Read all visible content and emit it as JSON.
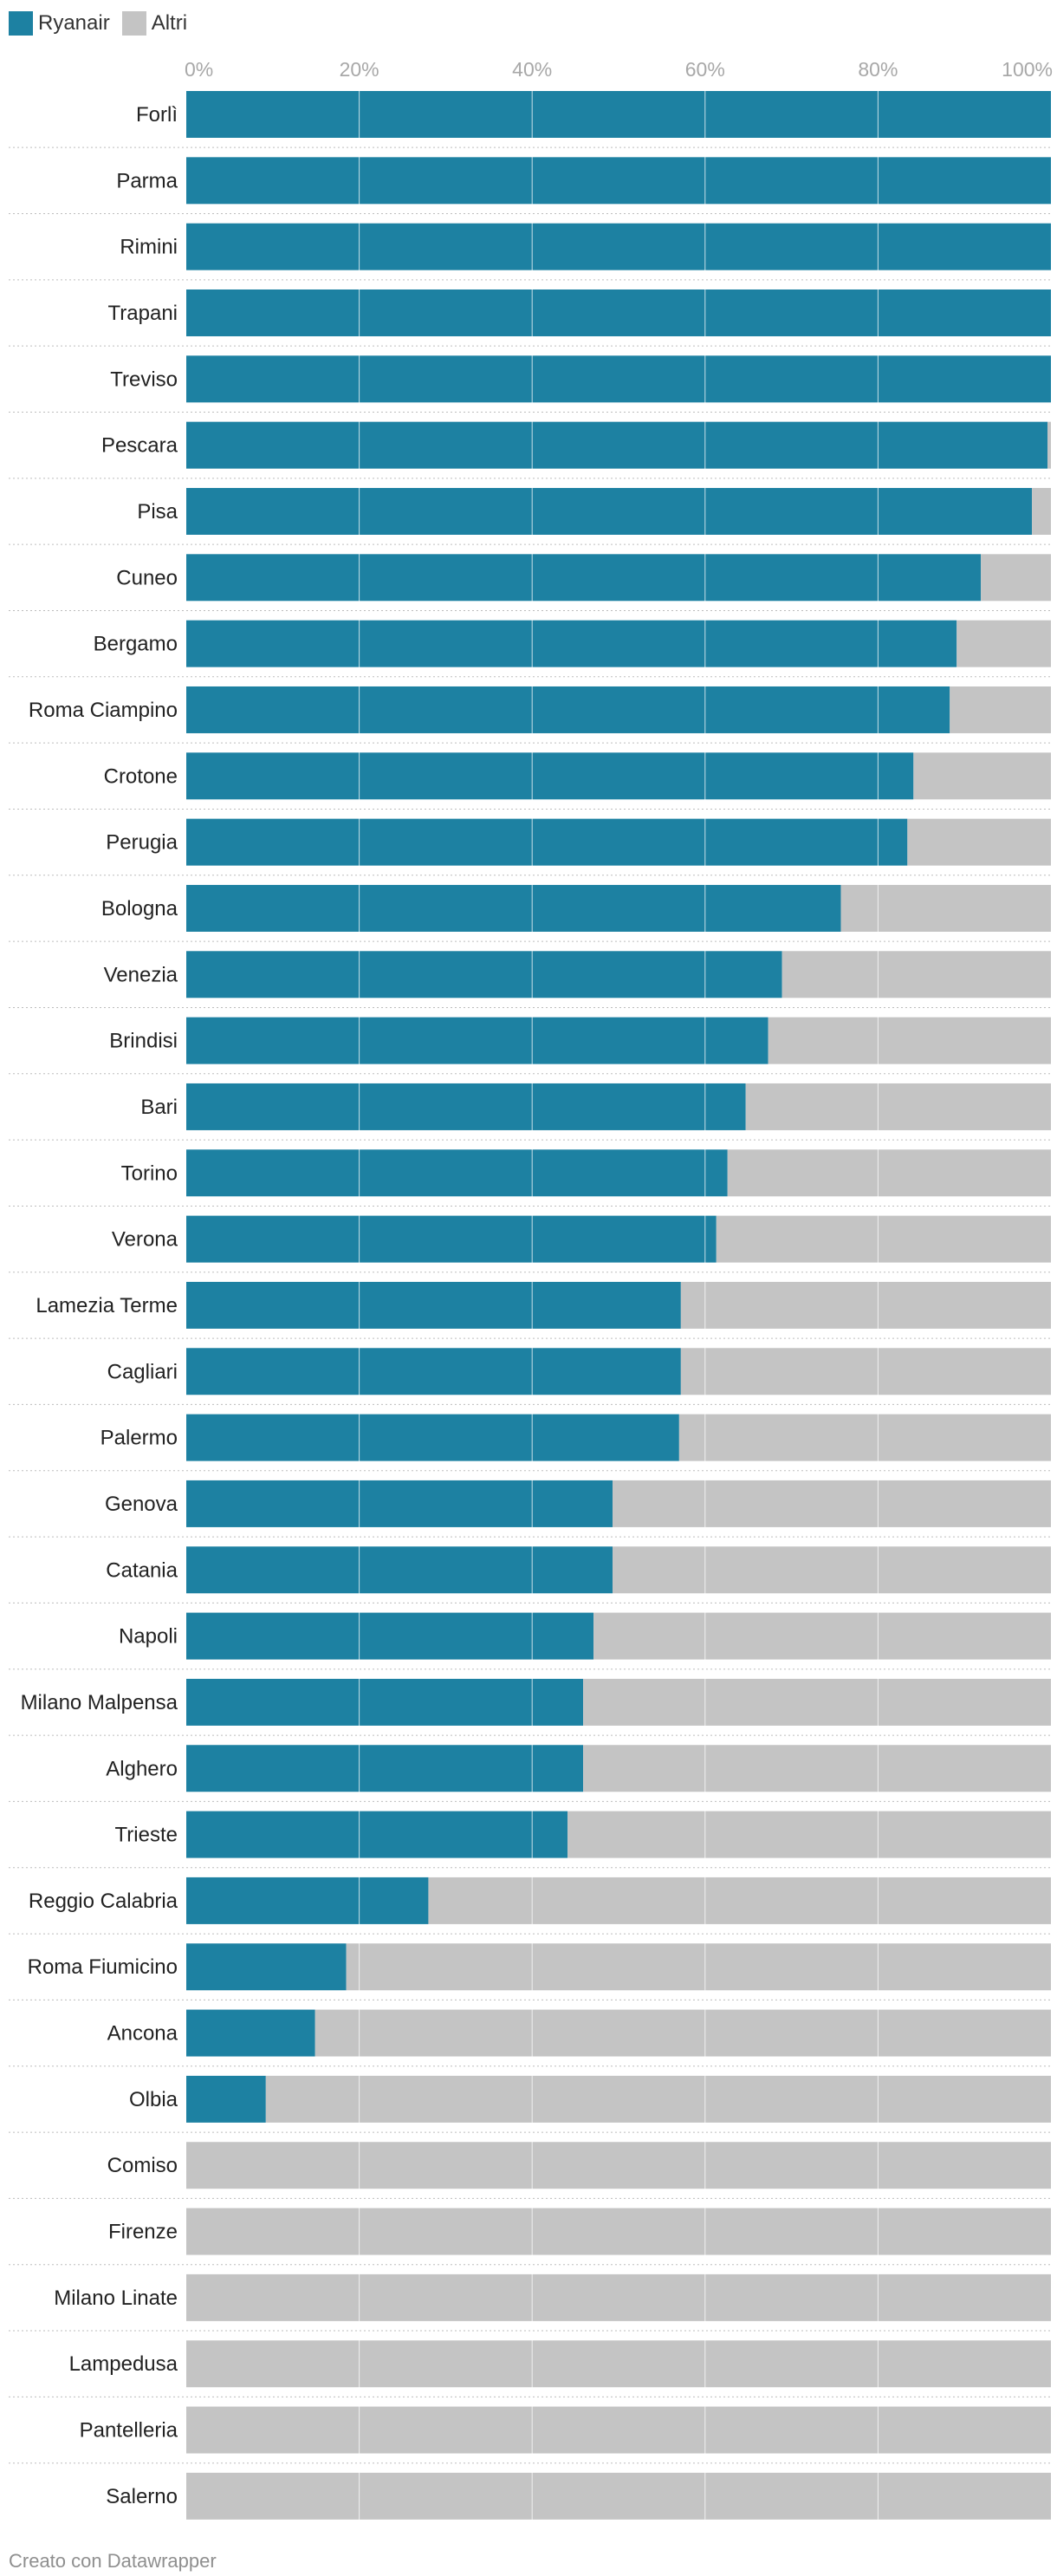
{
  "chart_data": {
    "type": "bar",
    "stacked": true,
    "orientation": "horizontal",
    "title": "",
    "xlabel": "",
    "ylabel": "",
    "xlim": [
      0,
      100
    ],
    "ticks": [
      "0%",
      "20%",
      "40%",
      "60%",
      "80%",
      "100%"
    ],
    "tick_values": [
      0,
      20,
      40,
      60,
      80,
      100
    ],
    "legend_position": "top-left",
    "categories": [
      "Forlì",
      "Parma",
      "Rimini",
      "Trapani",
      "Treviso",
      "Pescara",
      "Pisa",
      "Cuneo",
      "Bergamo",
      "Roma Ciampino",
      "Crotone",
      "Perugia",
      "Bologna",
      "Venezia",
      "Brindisi",
      "Bari",
      "Torino",
      "Verona",
      "Lamezia Terme",
      "Cagliari",
      "Palermo",
      "Genova",
      "Catania",
      "Napoli",
      "Milano Malpensa",
      "Alghero",
      "Trieste",
      "Reggio Calabria",
      "Roma Fiumicino",
      "Ancona",
      "Olbia",
      "Comiso",
      "Firenze",
      "Milano Linate",
      "Lampedusa",
      "Pantelleria",
      "Salerno"
    ],
    "series": [
      {
        "name": "Ryanair",
        "color": "#1d81a2",
        "values": [
          100,
          100,
          100,
          100,
          100,
          99.6,
          97.8,
          91.9,
          89.1,
          88.3,
          84.1,
          83.4,
          75.7,
          68.9,
          67.3,
          64.7,
          62.6,
          61.3,
          57.2,
          57.2,
          57.0,
          49.3,
          49.3,
          47.1,
          45.9,
          45.9,
          44.1,
          28.0,
          18.5,
          14.9,
          9.2,
          0,
          0,
          0,
          0,
          0,
          0
        ]
      },
      {
        "name": "Altri",
        "color": "#c4c4c4",
        "values": [
          0,
          0,
          0,
          0,
          0,
          0.4,
          2.2,
          8.1,
          10.9,
          11.7,
          15.9,
          16.6,
          24.3,
          31.1,
          32.7,
          35.3,
          37.4,
          38.7,
          42.8,
          42.8,
          43.0,
          50.7,
          50.7,
          52.9,
          54.1,
          54.1,
          55.9,
          72.0,
          81.5,
          85.1,
          90.8,
          100,
          100,
          100,
          100,
          100,
          100
        ]
      }
    ]
  },
  "footer": {
    "credit": "Creato con Datawrapper"
  },
  "colors": {
    "grid": "#ffffff",
    "tick_label": "#a8a8a8",
    "category_label": "#222222",
    "separator": "#bdbdbd"
  }
}
